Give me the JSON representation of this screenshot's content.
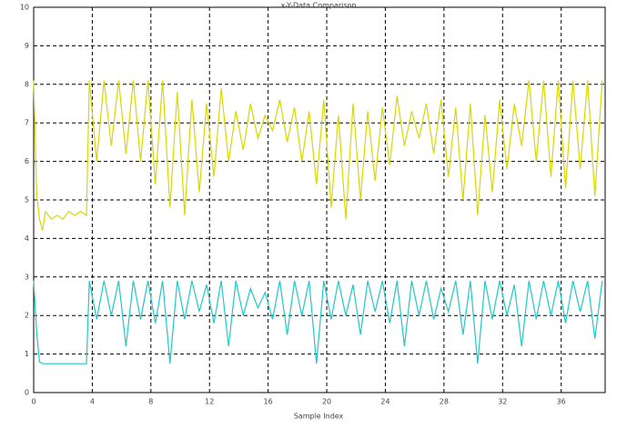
{
  "chart_data": {
    "type": "line",
    "title": "x-Y-Data Comparison",
    "x_label": "Sample Index",
    "x": [
      0,
      0.2,
      0.4,
      0.6,
      0.8,
      1.2,
      1.6,
      2,
      2.4,
      2.8,
      3.2,
      3.6,
      3.8,
      4.3,
      4.8,
      5.3,
      5.8,
      6.3,
      6.8,
      7.3,
      7.8,
      8.3,
      8.8,
      9.3,
      9.8,
      10.3,
      10.8,
      11.3,
      11.8,
      12.3,
      12.8,
      13.3,
      13.8,
      14.3,
      14.8,
      15.3,
      15.8,
      16.3,
      16.8,
      17.3,
      17.8,
      18.3,
      18.8,
      19.3,
      19.8,
      20.3,
      20.8,
      21.3,
      21.8,
      22.3,
      22.8,
      23.3,
      23.8,
      24.3,
      24.8,
      25.3,
      25.8,
      26.3,
      26.8,
      27.3,
      27.8,
      28.3,
      28.8,
      29.3,
      29.8,
      30.3,
      30.8,
      31.3,
      31.8,
      32.3,
      32.8,
      33.3,
      33.8,
      34.3,
      34.8,
      35.3,
      35.8,
      36.3,
      36.8,
      37.3,
      37.8,
      38.3,
      38.8
    ],
    "series": [
      {
        "color": "#d8d800",
        "values": [
          8.1,
          5.2,
          4.5,
          4.2,
          4.7,
          4.5,
          4.6,
          4.5,
          4.7,
          4.6,
          4.7,
          4.6,
          8.1,
          6.0,
          8.1,
          6.4,
          8.1,
          6.2,
          8.1,
          6.0,
          8.1,
          5.4,
          8.1,
          4.8,
          7.8,
          4.6,
          7.6,
          5.2,
          7.5,
          5.6,
          7.9,
          6.0,
          7.3,
          6.3,
          7.5,
          6.6,
          7.2,
          6.8,
          7.6,
          6.5,
          7.4,
          6.0,
          7.3,
          5.4,
          7.6,
          4.8,
          7.2,
          4.5,
          7.5,
          5.0,
          7.3,
          5.5,
          7.4,
          5.9,
          7.7,
          6.4,
          7.3,
          6.6,
          7.5,
          6.2,
          7.6,
          5.6,
          7.4,
          5.0,
          7.5,
          4.6,
          7.2,
          5.2,
          7.6,
          5.8,
          7.5,
          6.4,
          8.1,
          6.0,
          8.1,
          5.6,
          8.1,
          5.3,
          8.1,
          5.8,
          8.1,
          5.1,
          8.1
        ]
      },
      {
        "color": "#20c8c8",
        "values": [
          2.9,
          1.6,
          0.8,
          0.75,
          0.75,
          0.75,
          0.75,
          0.75,
          0.75,
          0.75,
          0.75,
          0.75,
          2.9,
          1.9,
          2.9,
          2.0,
          2.9,
          1.2,
          2.9,
          1.9,
          2.9,
          1.8,
          2.9,
          0.75,
          2.9,
          1.9,
          2.9,
          2.1,
          2.8,
          1.8,
          2.9,
          1.2,
          2.9,
          2.0,
          2.7,
          2.2,
          2.6,
          1.9,
          2.9,
          1.5,
          2.9,
          2.0,
          2.9,
          0.75,
          2.9,
          1.9,
          2.9,
          2.0,
          2.8,
          1.5,
          2.9,
          2.1,
          2.9,
          1.8,
          2.9,
          1.2,
          2.9,
          2.0,
          2.9,
          1.9,
          2.7,
          2.1,
          2.9,
          1.5,
          2.9,
          0.75,
          2.9,
          1.9,
          2.9,
          2.0,
          2.8,
          1.2,
          2.9,
          1.9,
          2.9,
          2.0,
          2.9,
          1.8,
          2.9,
          2.1,
          2.9,
          1.4,
          2.9
        ]
      }
    ],
    "xlim": [
      0,
      39
    ],
    "xticks": [
      0,
      4,
      8,
      12,
      16,
      20,
      24,
      28,
      32,
      36
    ],
    "ylim": [
      0,
      10
    ],
    "yticks": [
      0,
      1,
      2,
      3,
      4,
      5,
      6,
      7,
      8,
      9,
      10
    ],
    "grid": true
  }
}
